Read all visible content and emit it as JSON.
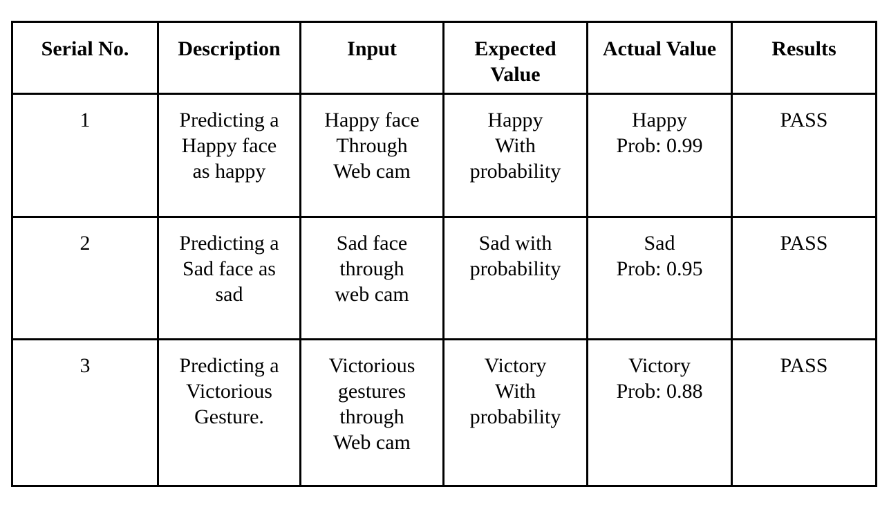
{
  "table": {
    "headers": [
      [
        "Serial No."
      ],
      [
        "Description"
      ],
      [
        "Input"
      ],
      [
        "Expected",
        "Value"
      ],
      [
        "Actual Value"
      ],
      [
        "Results"
      ]
    ],
    "rows": [
      [
        [
          "1"
        ],
        [
          "Predicting a",
          "Happy face",
          "as happy"
        ],
        [
          "Happy face",
          "Through",
          "Web cam"
        ],
        [
          "Happy",
          "With",
          "probability"
        ],
        [
          "Happy",
          "Prob: 0.99"
        ],
        [
          "PASS"
        ]
      ],
      [
        [
          "2"
        ],
        [
          "Predicting a",
          "Sad face as",
          "sad"
        ],
        [
          "Sad face",
          "through",
          "web cam"
        ],
        [
          "Sad with",
          "probability"
        ],
        [
          "Sad",
          "Prob: 0.95"
        ],
        [
          "PASS"
        ]
      ],
      [
        [
          "3"
        ],
        [
          "Predicting a",
          "Victorious",
          "Gesture."
        ],
        [
          "Victorious",
          "gestures",
          "through",
          "Web cam"
        ],
        [
          "Victory",
          "With",
          "probability"
        ],
        [
          "Victory",
          "Prob: 0.88"
        ],
        [
          "PASS"
        ]
      ]
    ]
  }
}
